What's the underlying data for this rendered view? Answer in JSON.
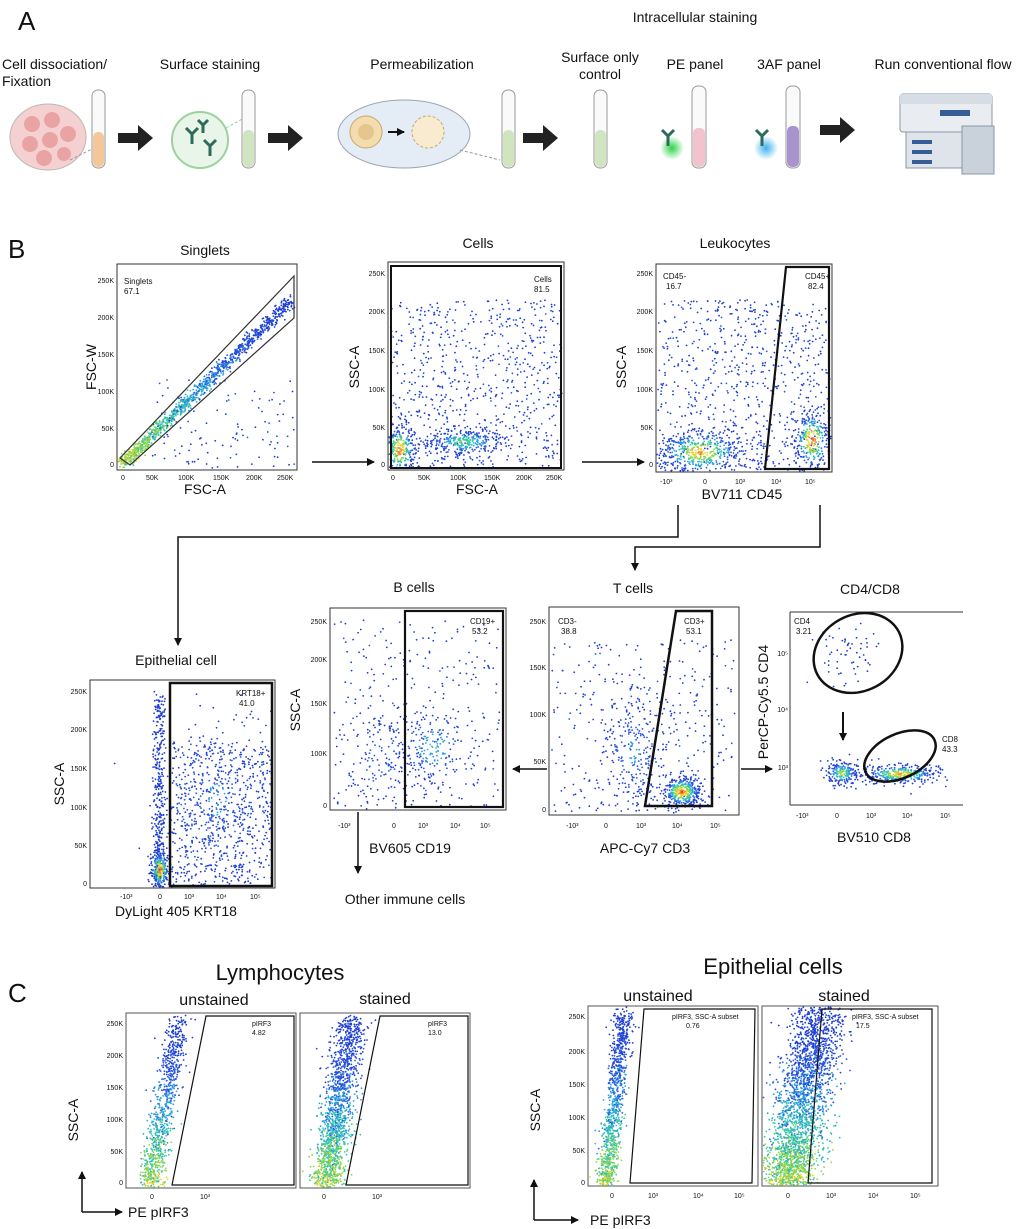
{
  "panel_a": {
    "letter": "A",
    "intracellular_header": "Intracellular staining",
    "steps": [
      {
        "id": "dissociation",
        "line1": "Cell dissociation/",
        "line2": "Fixation"
      },
      {
        "id": "surface",
        "line1": "Surface staining",
        "line2": ""
      },
      {
        "id": "perm",
        "line1": "Permeabilization",
        "line2": ""
      },
      {
        "id": "surface_only",
        "line1": "Surface only",
        "line2": "control"
      },
      {
        "id": "pe_panel",
        "line1": "PE panel",
        "line2": ""
      },
      {
        "id": "af_panel",
        "line1": "3AF panel",
        "line2": ""
      },
      {
        "id": "flow",
        "line1": "Run conventional flow",
        "line2": ""
      }
    ],
    "colors": {
      "orange_tube": "#f3c79a",
      "green_tube": "#cfe5c0",
      "pink_tube": "#f2c3cf",
      "purple_tube": "#a993cf",
      "green_glow": "#2fd24a",
      "blue_glow": "#3fb3f0",
      "arrow": "#222222"
    }
  },
  "panel_b": {
    "letter": "B",
    "plots": {
      "singlets": {
        "title": "Singlets",
        "xlabel": "FSC-A",
        "ylabel": "FSC-W",
        "gates": [
          {
            "name": "Singlets",
            "value": "67.1"
          }
        ]
      },
      "cells": {
        "title": "Cells",
        "xlabel": "FSC-A",
        "ylabel": "SSC-A",
        "gates": [
          {
            "name": "Cells",
            "value": "81.5"
          }
        ]
      },
      "leukocytes": {
        "title": "Leukocytes",
        "xlabel": "BV711 CD45",
        "ylabel": "SSC-A",
        "gates": [
          {
            "name": "CD45-",
            "value": "16.7"
          },
          {
            "name": "CD45+",
            "value": "82.4"
          }
        ]
      },
      "epithelial": {
        "title": "Epithelial cell",
        "xlabel": "DyLight 405 KRT18",
        "ylabel": "SSC-A",
        "gates": [
          {
            "name": "KRT18+",
            "value": "41.0"
          }
        ]
      },
      "bcells": {
        "title": "B cells",
        "xlabel": "BV605 CD19",
        "ylabel": "SSC-A",
        "gates": [
          {
            "name": "CD19+",
            "value": "53.2"
          }
        ]
      },
      "tcells": {
        "title": "T cells",
        "xlabel": "APC-Cy7 CD3",
        "ylabel": "",
        "gates": [
          {
            "name": "CD3-",
            "value": "38.8"
          },
          {
            "name": "CD3+",
            "value": "53.1"
          }
        ]
      },
      "cd4cd8": {
        "title": "CD4/CD8",
        "xlabel": "BV510 CD8",
        "ylabel": "PerCP-Cy5.5 CD4",
        "gates": [
          {
            "name": "CD4",
            "value": "3.21"
          },
          {
            "name": "CD8",
            "value": "43.3"
          }
        ]
      }
    },
    "other_immune": "Other immune cells",
    "lin_ticks": [
      "0",
      "50K",
      "100K",
      "150K",
      "200K",
      "250K"
    ],
    "log_ticks": [
      "-10³",
      "0",
      "10³",
      "10⁴",
      "10⁵"
    ]
  },
  "panel_c": {
    "letter": "C",
    "groups": [
      {
        "title": "Lymphocytes",
        "plots": [
          {
            "label": "unstained",
            "gate_name": "pIRF3",
            "gate_value": "4.82"
          },
          {
            "label": "stained",
            "gate_name": "pIRF3",
            "gate_value": "13.0"
          }
        ]
      },
      {
        "title": "Epithelial cells",
        "plots": [
          {
            "label": "unstained",
            "gate_name": "pIRF3, SSC-A subset",
            "gate_value": "0.76"
          },
          {
            "label": "stained",
            "gate_name": "pIRF3, SSC-A subset",
            "gate_value": "17.5"
          }
        ]
      }
    ],
    "xlabel": "PE pIRF3",
    "ylabel": "SSC-A"
  }
}
